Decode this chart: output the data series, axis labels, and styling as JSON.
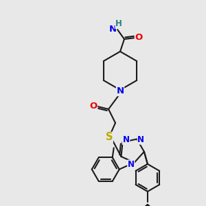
{
  "bg_color": "#e8e8e8",
  "bond_color": "#1a1a1a",
  "bond_width": 1.5,
  "atom_colors": {
    "N": "#0000ee",
    "O": "#ee0000",
    "S": "#bbaa00",
    "H": "#2a8080",
    "C": "#1a1a1a"
  },
  "font_size": 8.5,
  "fig_size": [
    3.0,
    3.0
  ],
  "dpi": 100
}
